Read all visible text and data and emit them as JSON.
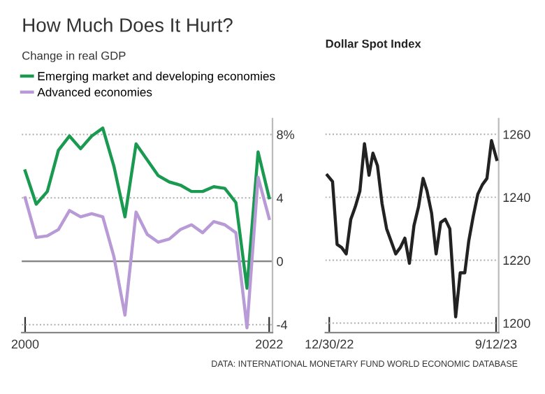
{
  "chart_data": [
    {
      "type": "line",
      "title": "How Much Does It Hurt?",
      "subtitle": "Change in real GDP",
      "x": [
        2000,
        2001,
        2002,
        2003,
        2004,
        2005,
        2006,
        2007,
        2008,
        2009,
        2010,
        2011,
        2012,
        2013,
        2014,
        2015,
        2016,
        2017,
        2018,
        2019,
        2020,
        2021,
        2022
      ],
      "series": [
        {
          "name": "Emerging market and developing economies",
          "color": "#1a9a50",
          "values": [
            5.7,
            3.6,
            4.4,
            7.0,
            7.9,
            7.1,
            7.9,
            8.4,
            6.0,
            2.8,
            7.4,
            6.4,
            5.4,
            5.0,
            4.8,
            4.4,
            4.4,
            4.7,
            4.6,
            3.7,
            -1.7,
            6.9,
            4.0
          ]
        },
        {
          "name": "Advanced economies",
          "color": "#b89ad6",
          "values": [
            4.0,
            1.5,
            1.6,
            2.0,
            3.2,
            2.8,
            3.0,
            2.8,
            0.3,
            -3.4,
            3.1,
            1.7,
            1.2,
            1.4,
            2.0,
            2.3,
            1.8,
            2.5,
            2.3,
            1.8,
            -4.2,
            5.3,
            2.7
          ]
        }
      ],
      "xlim": [
        1999.7,
        2022.3
      ],
      "xticks": [
        2000,
        2022
      ],
      "ylim": [
        -4.5,
        9
      ],
      "yticks": [
        {
          "value": 8,
          "label": "8%"
        },
        4,
        0,
        -4
      ],
      "ref_lines": [
        {
          "axis": "y",
          "value": 0,
          "color": "#888888"
        }
      ],
      "grid": "y",
      "legend": "top left",
      "annotations": [
        "DATA: INTERNATIONAL MONETARY FUND WORLD ECONOMIC DATABASE"
      ]
    },
    {
      "type": "line",
      "title": "Dollar Spot Index",
      "x": [
        "2022-12-27",
        "2023-01-04",
        "2023-01-11",
        "2023-01-18",
        "2023-01-25",
        "2023-02-01",
        "2023-02-08",
        "2023-02-15",
        "2023-02-22",
        "2023-03-01",
        "2023-03-07",
        "2023-03-14",
        "2023-03-21",
        "2023-03-28",
        "2023-04-04",
        "2023-04-11",
        "2023-04-18",
        "2023-04-25",
        "2023-05-02",
        "2023-05-09",
        "2023-05-16",
        "2023-05-23",
        "2023-05-29",
        "2023-06-05",
        "2023-06-12",
        "2023-06-19",
        "2023-06-26",
        "2023-07-03",
        "2023-07-12",
        "2023-07-19",
        "2023-07-26",
        "2023-08-01",
        "2023-08-08",
        "2023-08-15",
        "2023-08-22",
        "2023-08-29",
        "2023-09-05",
        "2023-09-13"
      ],
      "series": [
        {
          "color": "#222222",
          "values": [
            1247,
            1245,
            1225,
            1224,
            1222,
            1233,
            1237,
            1242,
            1257,
            1247,
            1254,
            1250,
            1238,
            1230,
            1226,
            1222,
            1224,
            1227,
            1219,
            1231,
            1237,
            1246,
            1242,
            1235,
            1222,
            1232,
            1233,
            1230,
            1202,
            1216,
            1216,
            1226,
            1234,
            1241,
            1244,
            1246,
            1258,
            1252
          ]
        }
      ],
      "xlim": [
        "2022-12-24",
        "2023-09-16"
      ],
      "xticks": [
        {
          "value": "2022-12-30",
          "label": "12/30/22"
        },
        {
          "value": "2023-09-12",
          "label": "9/12/23"
        }
      ],
      "ylim": [
        1197,
        1265
      ],
      "yticks": [
        1200,
        1220,
        1240,
        1260
      ],
      "grid": "y"
    }
  ]
}
